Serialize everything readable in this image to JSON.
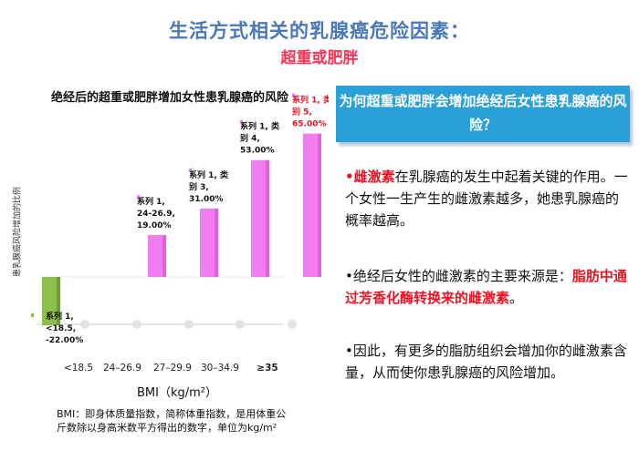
{
  "header": {
    "title": "生活方式相关的乳腺癌危险因素：",
    "subtitle": "超重或肥胖"
  },
  "chart_data": {
    "type": "bar",
    "title": "绝经后的超重或肥胖增加女性患乳腺癌的风险",
    "ylabel": "患乳腺癌风险增加的比例",
    "xlabel": "BMI（kg/m²）",
    "categories": [
      "<18.5",
      "24–26.9",
      "27–29.9",
      "30–34.9",
      "≥35"
    ],
    "values": [
      -22.0,
      19.0,
      31.0,
      53.0,
      65.0
    ],
    "data_labels": [
      "系列 1, <18.5, -22.00%",
      "系列 1, 24-26.9, 19.00%",
      "系列 1, 类别 3, 31.00%",
      "系列 1, 类别 4, 53.00%",
      "系列 1, 类别 5, 65.00%"
    ],
    "highlight_last": true,
    "colors": {
      "negative": "#8cc04a",
      "positive": "#f07ef0",
      "highlight": "#ee1122"
    }
  },
  "bmi_note": "BMI：即身体质量指数，简称体重指数，是用体重公斤数除以身高米数平方得出的数字，单位为kg/m²",
  "right": {
    "question": "为何超重或肥胖会增加绝经后女性患乳腺癌的风险？",
    "p1_highlight": "雌激素",
    "p1_rest": "在乳腺癌的发生中起着关键的作用。一个女性一生产生的雌激素越多，她患乳腺癌的概率越高。",
    "p2_lead": "绝经后女性的雌激素的主要来源是：",
    "p2_highlight": "脂肪中通过芳香化酶转换来的雌激素",
    "p2_end": "。",
    "p3": "因此，有更多的脂肪组织会增加你的雌激素含量，从而使你患乳腺癌的风险增加。"
  }
}
